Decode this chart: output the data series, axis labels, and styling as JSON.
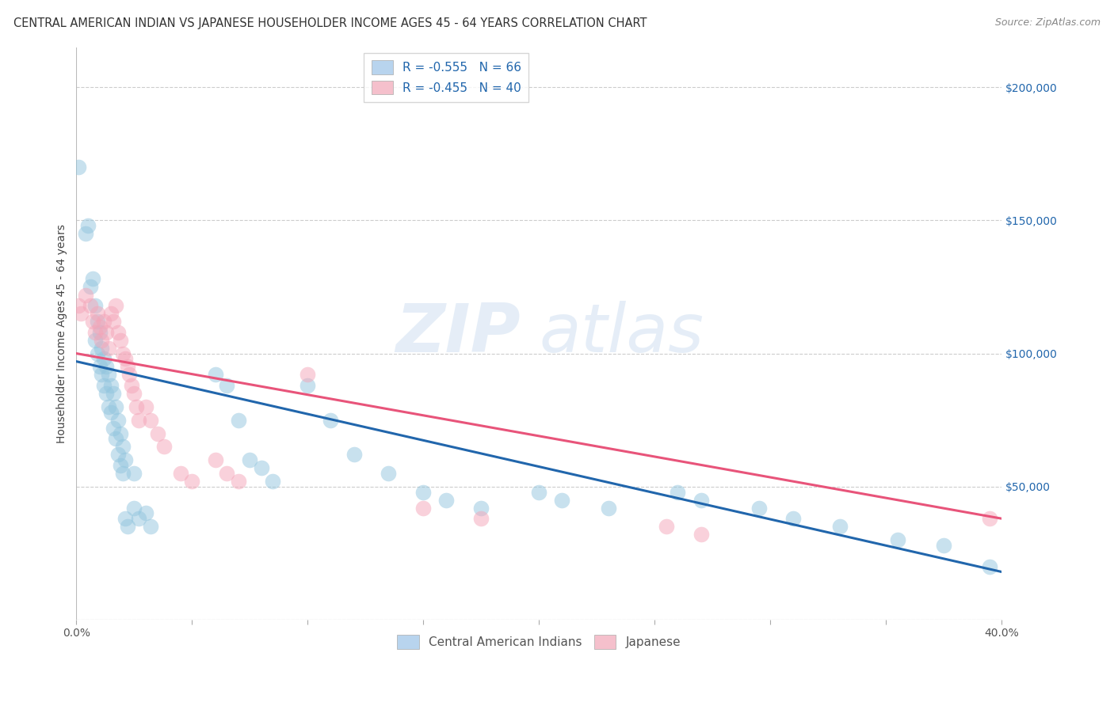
{
  "title": "CENTRAL AMERICAN INDIAN VS JAPANESE HOUSEHOLDER INCOME AGES 45 - 64 YEARS CORRELATION CHART",
  "source": "Source: ZipAtlas.com",
  "ylabel": "Householder Income Ages 45 - 64 years",
  "xlim": [
    0.0,
    0.4
  ],
  "ylim": [
    0,
    215000
  ],
  "yticks": [
    0,
    50000,
    100000,
    150000,
    200000
  ],
  "legend_labels_bottom": [
    "Central American Indians",
    "Japanese"
  ],
  "blue_scatter_color": "#92c5de",
  "pink_scatter_color": "#f4a5b8",
  "blue_line_color": "#2166ac",
  "pink_line_color": "#e8547a",
  "grid_color": "#cccccc",
  "title_fontsize": 10.5,
  "source_fontsize": 9,
  "axis_label_fontsize": 10,
  "tick_fontsize": 10,
  "legend_fontsize": 11,
  "blue_points": [
    [
      0.001,
      170000
    ],
    [
      0.004,
      145000
    ],
    [
      0.005,
      148000
    ],
    [
      0.006,
      125000
    ],
    [
      0.007,
      128000
    ],
    [
      0.008,
      118000
    ],
    [
      0.008,
      105000
    ],
    [
      0.009,
      112000
    ],
    [
      0.009,
      100000
    ],
    [
      0.01,
      108000
    ],
    [
      0.01,
      95000
    ],
    [
      0.011,
      102000
    ],
    [
      0.011,
      92000
    ],
    [
      0.012,
      98000
    ],
    [
      0.012,
      88000
    ],
    [
      0.013,
      95000
    ],
    [
      0.013,
      85000
    ],
    [
      0.014,
      92000
    ],
    [
      0.014,
      80000
    ],
    [
      0.015,
      88000
    ],
    [
      0.015,
      78000
    ],
    [
      0.016,
      85000
    ],
    [
      0.016,
      72000
    ],
    [
      0.017,
      80000
    ],
    [
      0.017,
      68000
    ],
    [
      0.018,
      75000
    ],
    [
      0.018,
      62000
    ],
    [
      0.019,
      70000
    ],
    [
      0.019,
      58000
    ],
    [
      0.02,
      65000
    ],
    [
      0.02,
      55000
    ],
    [
      0.021,
      60000
    ],
    [
      0.021,
      38000
    ],
    [
      0.022,
      35000
    ],
    [
      0.025,
      55000
    ],
    [
      0.025,
      42000
    ],
    [
      0.027,
      38000
    ],
    [
      0.03,
      40000
    ],
    [
      0.032,
      35000
    ],
    [
      0.06,
      92000
    ],
    [
      0.065,
      88000
    ],
    [
      0.07,
      75000
    ],
    [
      0.075,
      60000
    ],
    [
      0.08,
      57000
    ],
    [
      0.085,
      52000
    ],
    [
      0.1,
      88000
    ],
    [
      0.11,
      75000
    ],
    [
      0.12,
      62000
    ],
    [
      0.135,
      55000
    ],
    [
      0.15,
      48000
    ],
    [
      0.16,
      45000
    ],
    [
      0.175,
      42000
    ],
    [
      0.2,
      48000
    ],
    [
      0.21,
      45000
    ],
    [
      0.23,
      42000
    ],
    [
      0.26,
      48000
    ],
    [
      0.27,
      45000
    ],
    [
      0.295,
      42000
    ],
    [
      0.31,
      38000
    ],
    [
      0.33,
      35000
    ],
    [
      0.355,
      30000
    ],
    [
      0.375,
      28000
    ],
    [
      0.395,
      20000
    ]
  ],
  "pink_points": [
    [
      0.001,
      118000
    ],
    [
      0.002,
      115000
    ],
    [
      0.004,
      122000
    ],
    [
      0.006,
      118000
    ],
    [
      0.007,
      112000
    ],
    [
      0.008,
      108000
    ],
    [
      0.009,
      115000
    ],
    [
      0.01,
      110000
    ],
    [
      0.011,
      105000
    ],
    [
      0.012,
      112000
    ],
    [
      0.013,
      108000
    ],
    [
      0.014,
      102000
    ],
    [
      0.015,
      115000
    ],
    [
      0.016,
      112000
    ],
    [
      0.017,
      118000
    ],
    [
      0.018,
      108000
    ],
    [
      0.019,
      105000
    ],
    [
      0.02,
      100000
    ],
    [
      0.021,
      98000
    ],
    [
      0.022,
      95000
    ],
    [
      0.023,
      92000
    ],
    [
      0.024,
      88000
    ],
    [
      0.025,
      85000
    ],
    [
      0.026,
      80000
    ],
    [
      0.027,
      75000
    ],
    [
      0.03,
      80000
    ],
    [
      0.032,
      75000
    ],
    [
      0.035,
      70000
    ],
    [
      0.038,
      65000
    ],
    [
      0.045,
      55000
    ],
    [
      0.05,
      52000
    ],
    [
      0.06,
      60000
    ],
    [
      0.065,
      55000
    ],
    [
      0.07,
      52000
    ],
    [
      0.1,
      92000
    ],
    [
      0.15,
      42000
    ],
    [
      0.175,
      38000
    ],
    [
      0.255,
      35000
    ],
    [
      0.27,
      32000
    ],
    [
      0.395,
      38000
    ]
  ],
  "blue_regression_intercept": 97000,
  "blue_regression_slope": -197500,
  "pink_regression_intercept": 100000,
  "pink_regression_slope": -155000
}
